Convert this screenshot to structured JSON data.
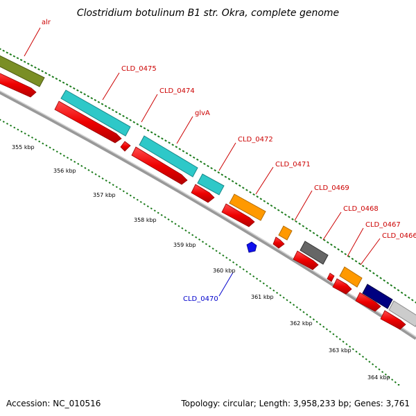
{
  "title": "Clostridium botulinum B1 str. Okra, complete genome",
  "footer": {
    "accession": "Accession: NC_010516",
    "stats": "Topology: circular; Length: 3,958,233 bp; Genes: 3,761"
  },
  "colors": {
    "backbone": "#999999",
    "tick_dots": "#1a7a1a",
    "label_red": "#cc0000",
    "label_blue": "#0000cc",
    "cds_red": "#ee0000"
  },
  "ticks": [
    "355 kbp",
    "356 kbp",
    "357 kbp",
    "358 kbp",
    "359 kbp",
    "360 kbp",
    "361 kbp",
    "362 kbp",
    "363 kbp",
    "364 kbp"
  ],
  "genes": [
    {
      "label": "alr",
      "color": "#7a8e25",
      "icon": "arrow-block"
    },
    {
      "label": "CLD_0475",
      "color": "#2ec8c8",
      "icon": "arrow-block"
    },
    {
      "label": "CLD_0474",
      "color": "#2ec8c8",
      "icon": "arrow-block"
    },
    {
      "label": "glvA",
      "color": "#2ec8c8",
      "icon": "arrow-block"
    },
    {
      "label": "CLD_0472",
      "color": "#2ec8c8",
      "icon": "arrow-block"
    },
    {
      "label": "CLD_0471",
      "color": "#ff9900",
      "icon": "arrow-block"
    },
    {
      "label": "CLD_0469",
      "color": "#ff9900",
      "icon": "arrow-block"
    },
    {
      "label": "CLD_0468",
      "color": "#666666",
      "icon": "arrow-block"
    },
    {
      "label": "CLD_0467",
      "color": "#ff9900",
      "icon": "arrow-block"
    },
    {
      "label": "CLD_0466",
      "color": "#000080",
      "icon": "arrow-block"
    },
    {
      "label": "CLD_0470",
      "color": "#1010ee",
      "icon": "arrow-block"
    }
  ]
}
